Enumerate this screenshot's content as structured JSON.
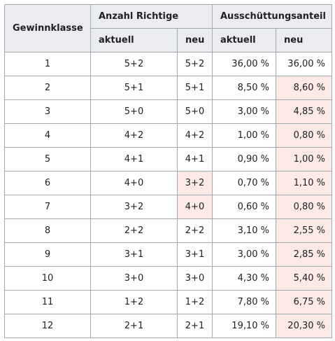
{
  "header": {
    "class_label": "Gewinnklasse",
    "matches_label": "Anzahl Richtige",
    "payout_label": "Ausschüttungsanteil",
    "current_label": "aktuell",
    "new_label": "neu"
  },
  "rows": [
    {
      "class": "1",
      "matches_current": "5+2",
      "matches_new": "5+2",
      "matches_changed": false,
      "share_current": "36,00 %",
      "share_new": "36,00 %",
      "share_changed": false
    },
    {
      "class": "2",
      "matches_current": "5+1",
      "matches_new": "5+1",
      "matches_changed": false,
      "share_current": "8,50 %",
      "share_new": "8,60 %",
      "share_changed": true
    },
    {
      "class": "3",
      "matches_current": "5+0",
      "matches_new": "5+0",
      "matches_changed": false,
      "share_current": "3,00 %",
      "share_new": "4,85 %",
      "share_changed": true
    },
    {
      "class": "4",
      "matches_current": "4+2",
      "matches_new": "4+2",
      "matches_changed": false,
      "share_current": "1,00 %",
      "share_new": "0,80 %",
      "share_changed": true
    },
    {
      "class": "5",
      "matches_current": "4+1",
      "matches_new": "4+1",
      "matches_changed": false,
      "share_current": "0,90 %",
      "share_new": "1,00 %",
      "share_changed": true
    },
    {
      "class": "6",
      "matches_current": "4+0",
      "matches_new": "3+2",
      "matches_changed": true,
      "share_current": "0,70 %",
      "share_new": "1,10 %",
      "share_changed": true
    },
    {
      "class": "7",
      "matches_current": "3+2",
      "matches_new": "4+0",
      "matches_changed": true,
      "share_current": "0,60 %",
      "share_new": "0,80 %",
      "share_changed": true
    },
    {
      "class": "8",
      "matches_current": "2+2",
      "matches_new": "2+2",
      "matches_changed": false,
      "share_current": "3,10 %",
      "share_new": "2,55 %",
      "share_changed": true
    },
    {
      "class": "9",
      "matches_current": "3+1",
      "matches_new": "3+1",
      "matches_changed": false,
      "share_current": "3,00 %",
      "share_new": "2,85 %",
      "share_changed": true
    },
    {
      "class": "10",
      "matches_current": "3+0",
      "matches_new": "3+0",
      "matches_changed": false,
      "share_current": "4,30 %",
      "share_new": "5,40 %",
      "share_changed": true
    },
    {
      "class": "11",
      "matches_current": "1+2",
      "matches_new": "1+2",
      "matches_changed": false,
      "share_current": "7,80 %",
      "share_new": "6,75 %",
      "share_changed": true
    },
    {
      "class": "12",
      "matches_current": "2+1",
      "matches_new": "2+1",
      "matches_changed": false,
      "share_current": "19,10 %",
      "share_new": "20,30 %",
      "share_changed": true
    }
  ],
  "colors": {
    "header_bg": "#eaecf0",
    "border": "#a2a9b1",
    "changed_highlight": "#fde9e6"
  }
}
